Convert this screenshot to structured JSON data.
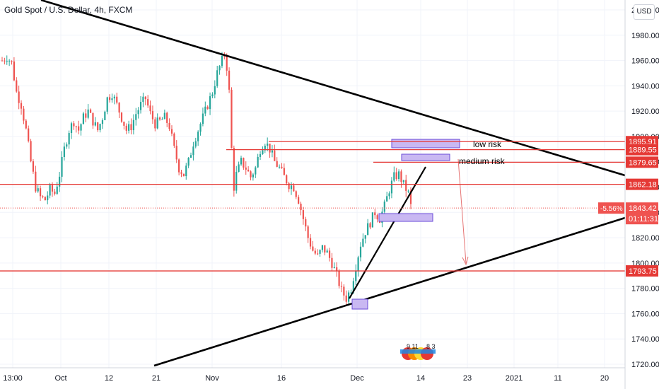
{
  "header": {
    "title": "Gold Spot / U.S. Dollar, 4h, FXCM",
    "currency": "USD"
  },
  "chart_data": {
    "type": "candlestick",
    "symbol": "Gold Spot / U.S. Dollar",
    "interval": "4h",
    "source": "FXCM",
    "ylim": [
      1712,
      2010
    ],
    "y_ticks": [
      "1720.00",
      "1740.00",
      "1760.00",
      "1780.00",
      "1800.00",
      "1820.00",
      "1840.00",
      "1860.00",
      "1880.00",
      "1900.00",
      "1920.00",
      "1940.00",
      "1960.00",
      "1980.00",
      "2000.00"
    ],
    "x_ticks": [
      "13:00",
      "Oct",
      "12",
      "21",
      "Nov",
      "16",
      "Dec",
      "14",
      "23",
      "2021",
      "11",
      "20"
    ],
    "price_levels": [
      {
        "label": "1895.91",
        "value": 1895.91
      },
      {
        "label": "1889.55",
        "value": 1889.55
      },
      {
        "label": "1879.65",
        "value": 1879.65
      },
      {
        "label": "1862.18",
        "value": 1862.18
      },
      {
        "label": "1793.75",
        "value": 1793.75
      }
    ],
    "current_price": {
      "label": "1843.42",
      "value": 1843.42,
      "change": "-5.56%",
      "countdown": "01:11:31"
    },
    "annotations": [
      {
        "text": "low risk"
      },
      {
        "text": "medium risk"
      }
    ],
    "price_path": [
      [
        0,
        1960
      ],
      [
        2,
        1963
      ],
      [
        4,
        1958
      ],
      [
        6,
        1935
      ],
      [
        8,
        1925
      ],
      [
        10,
        1905
      ],
      [
        12,
        1880
      ],
      [
        14,
        1860
      ],
      [
        16,
        1852
      ],
      [
        18,
        1850
      ],
      [
        20,
        1858
      ],
      [
        22,
        1855
      ],
      [
        24,
        1870
      ],
      [
        26,
        1890
      ],
      [
        28,
        1905
      ],
      [
        30,
        1912
      ],
      [
        32,
        1905
      ],
      [
        34,
        1915
      ],
      [
        36,
        1920
      ],
      [
        38,
        1912
      ],
      [
        40,
        1905
      ],
      [
        42,
        1915
      ],
      [
        44,
        1930
      ],
      [
        46,
        1934
      ],
      [
        48,
        1925
      ],
      [
        50,
        1915
      ],
      [
        52,
        1905
      ],
      [
        54,
        1908
      ],
      [
        56,
        1918
      ],
      [
        58,
        1925
      ],
      [
        60,
        1930
      ],
      [
        62,
        1918
      ],
      [
        64,
        1910
      ],
      [
        66,
        1912
      ],
      [
        68,
        1915
      ],
      [
        70,
        1908
      ],
      [
        72,
        1890
      ],
      [
        74,
        1875
      ],
      [
        76,
        1870
      ],
      [
        78,
        1880
      ],
      [
        80,
        1895
      ],
      [
        82,
        1905
      ],
      [
        84,
        1915
      ],
      [
        86,
        1925
      ],
      [
        88,
        1935
      ],
      [
        90,
        1950
      ],
      [
        92,
        1960
      ],
      [
        93,
        1965
      ],
      [
        94,
        1955
      ],
      [
        95,
        1935
      ],
      [
        96,
        1890
      ],
      [
        97,
        1860
      ],
      [
        98,
        1870
      ],
      [
        100,
        1880
      ],
      [
        102,
        1875
      ],
      [
        104,
        1868
      ],
      [
        106,
        1875
      ],
      [
        108,
        1890
      ],
      [
        110,
        1896
      ],
      [
        112,
        1890
      ],
      [
        114,
        1880
      ],
      [
        116,
        1875
      ],
      [
        118,
        1868
      ],
      [
        120,
        1862
      ],
      [
        122,
        1860
      ],
      [
        124,
        1850
      ],
      [
        126,
        1835
      ],
      [
        128,
        1820
      ],
      [
        130,
        1810
      ],
      [
        132,
        1805
      ],
      [
        134,
        1812
      ],
      [
        136,
        1808
      ],
      [
        138,
        1800
      ],
      [
        140,
        1790
      ],
      [
        142,
        1778
      ],
      [
        144,
        1772
      ],
      [
        146,
        1780
      ],
      [
        148,
        1798
      ],
      [
        150,
        1815
      ],
      [
        152,
        1825
      ],
      [
        154,
        1832
      ],
      [
        156,
        1840
      ],
      [
        158,
        1835
      ],
      [
        160,
        1845
      ],
      [
        162,
        1858
      ],
      [
        164,
        1868
      ],
      [
        166,
        1870
      ],
      [
        168,
        1862
      ],
      [
        170,
        1855
      ],
      [
        171,
        1845
      ]
    ]
  }
}
